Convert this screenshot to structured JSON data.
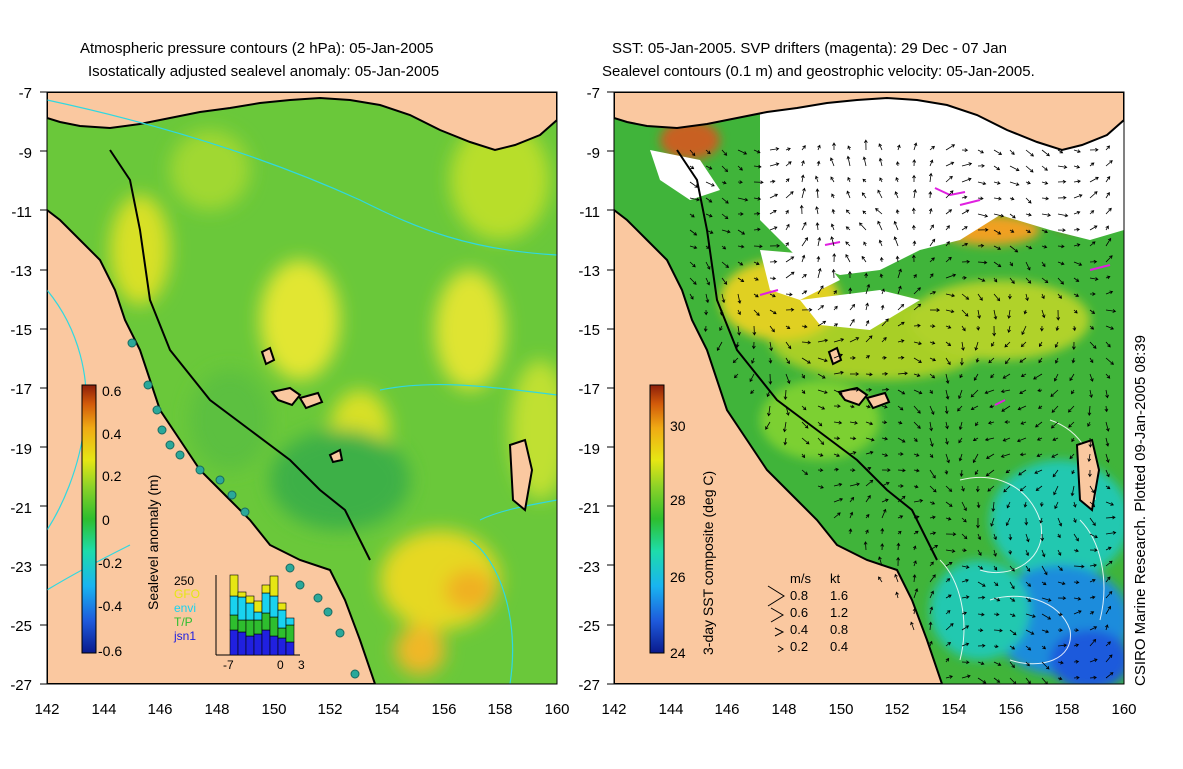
{
  "left_panel": {
    "title_line1": "Atmospheric pressure contours (2 hPa): 05-Jan-2005",
    "title_line2": "Isostatically adjusted sealevel anomaly: 05-Jan-2005",
    "colorbar": {
      "label": "Sealevel anomaly (m)",
      "ticks": [
        "0.6",
        "0.4",
        "0.2",
        "0",
        "-0.2",
        "-0.4",
        "-0.6"
      ],
      "colors": [
        "#0a1a8c",
        "#1e5adc",
        "#19b4f0",
        "#1edcaa",
        "#2ebe2e",
        "#8cd228",
        "#e6e614",
        "#f0aa14",
        "#d25a0a",
        "#8c1e0a"
      ]
    },
    "inset": {
      "max_count": "250",
      "legend": [
        {
          "label": "GFO",
          "color": "#e6e614"
        },
        {
          "label": "envi",
          "color": "#19d2f0"
        },
        {
          "label": "T/P",
          "color": "#2ebe2e"
        },
        {
          "label": "jsn1",
          "color": "#2020e0"
        }
      ],
      "x_ticks": [
        "-7",
        "0",
        "3"
      ]
    }
  },
  "right_panel": {
    "title_line1": "SST: 05-Jan-2005. SVP drifters (magenta): 29 Dec - 07 Jan",
    "title_line2": "Sealevel contours (0.1 m) and geostrophic velocity: 05-Jan-2005.",
    "colorbar": {
      "label": "3-day SST composite (deg C)",
      "ticks": [
        "30",
        "28",
        "26",
        "24"
      ],
      "colors": [
        "#0a1a8c",
        "#1e5adc",
        "#19b4f0",
        "#1edcaa",
        "#2ebe2e",
        "#8cd228",
        "#e6e614",
        "#f0aa14",
        "#d25a0a",
        "#8c1e0a"
      ]
    },
    "velocity_key": {
      "header_ms": "m/s",
      "header_kt": "kt",
      "rows": [
        {
          "ms": "0.8",
          "kt": "1.6"
        },
        {
          "ms": "0.6",
          "kt": "1.2"
        },
        {
          "ms": "0.4",
          "kt": "0.8"
        },
        {
          "ms": "0.2",
          "kt": "0.4"
        }
      ]
    },
    "credit": "CSIRO Marine Research. Plotted 09-Jan-2005 08:39"
  },
  "axes": {
    "lat_ticks": [
      "-7",
      "-9",
      "-11",
      "-13",
      "-15",
      "-17",
      "-19",
      "-21",
      "-23",
      "-25",
      "-27"
    ],
    "lon_ticks": [
      "142",
      "144",
      "146",
      "148",
      "150",
      "152",
      "154",
      "156",
      "158",
      "160"
    ]
  },
  "colors": {
    "land": "#fac8a0",
    "coast": "#000000",
    "pressure_contour": "#30d8e0",
    "drifter": "#e020e0",
    "station": "#2aa89a"
  }
}
